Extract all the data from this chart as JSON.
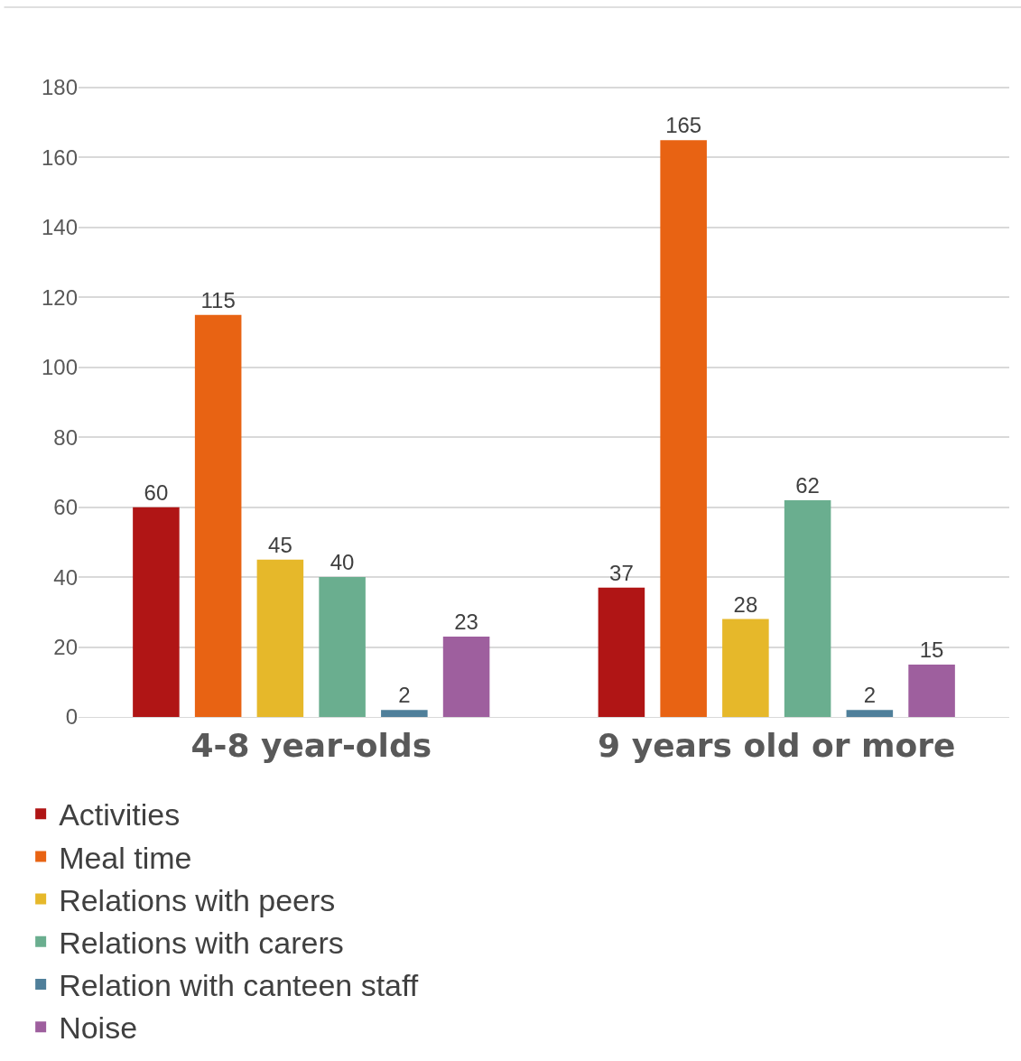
{
  "chart_data": {
    "type": "bar",
    "categories": [
      "4-8 year-olds",
      "9 years old or more"
    ],
    "series": [
      {
        "name": "Activities",
        "color": "#b01515",
        "values": [
          60,
          37
        ]
      },
      {
        "name": "Meal time",
        "color": "#e86313",
        "values": [
          115,
          165
        ]
      },
      {
        "name": "Relations with peers",
        "color": "#e6b82a",
        "values": [
          45,
          28
        ]
      },
      {
        "name": "Relations with carers",
        "color": "#6aae8f",
        "values": [
          40,
          62
        ]
      },
      {
        "name": "Relation with canteen staff",
        "color": "#4f7f9a",
        "values": [
          2,
          2
        ]
      },
      {
        "name": "Noise",
        "color": "#9e5f9e",
        "values": [
          23,
          15
        ]
      }
    ],
    "ylim": [
      0,
      203
    ],
    "yticks": [
      0,
      20,
      40,
      60,
      80,
      100,
      120,
      140,
      160,
      180
    ],
    "grid": "y",
    "legend": "bottom",
    "data_labels": true
  }
}
